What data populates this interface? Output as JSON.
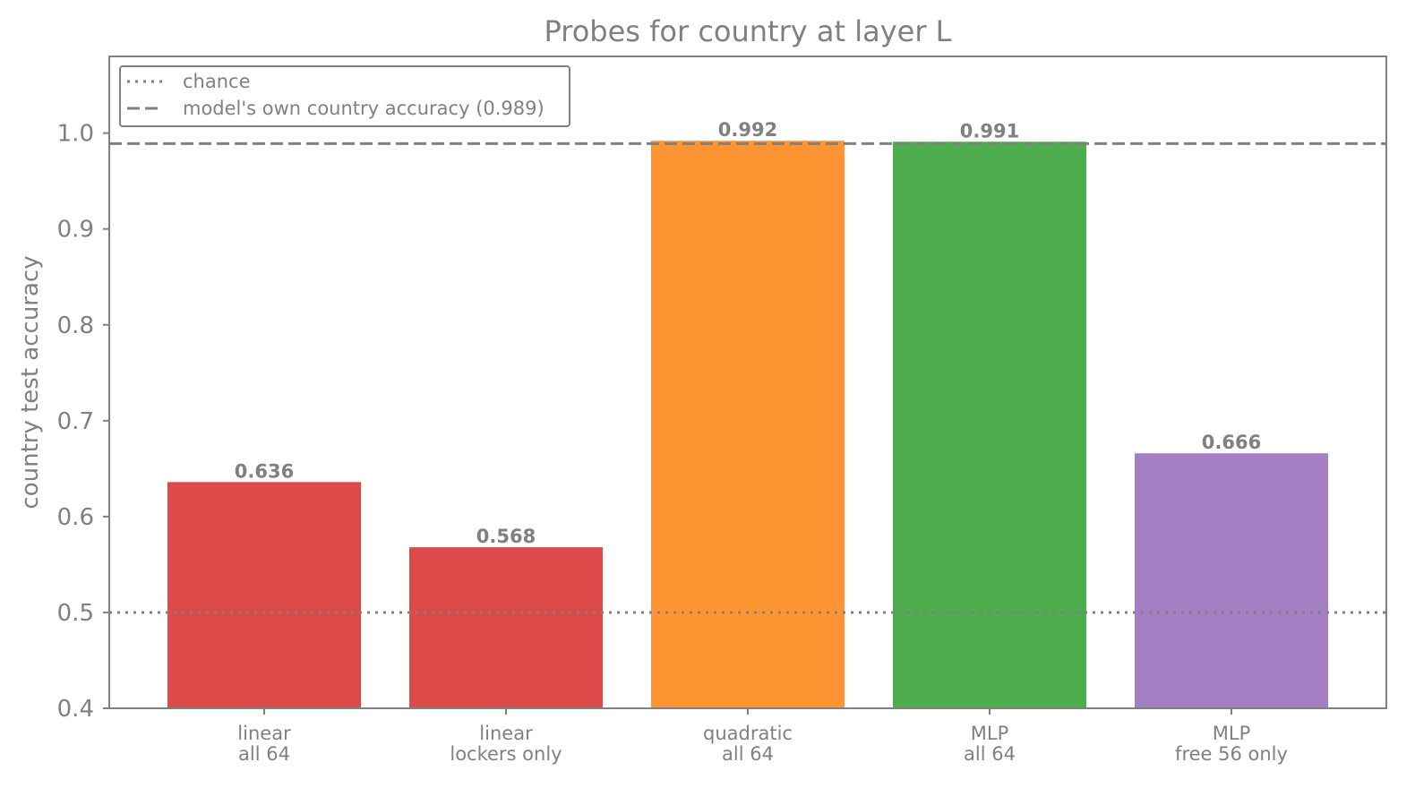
{
  "chart_data": {
    "type": "bar",
    "title": "Probes for country at layer L",
    "xlabel": "",
    "ylabel": "country test accuracy",
    "ylim": [
      0.4,
      1.08
    ],
    "yticks": [
      0.4,
      0.5,
      0.6,
      0.7,
      0.8,
      0.9,
      1.0
    ],
    "ytick_labels": [
      "0.4",
      "0.5",
      "0.6",
      "0.7",
      "0.8",
      "0.9",
      "1.0"
    ],
    "categories": [
      [
        "linear",
        "all 64"
      ],
      [
        "linear",
        "lockers only"
      ],
      [
        "quadratic",
        "all 64"
      ],
      [
        "MLP",
        "all 64"
      ],
      [
        "MLP",
        "free 56 only"
      ]
    ],
    "values": [
      0.636,
      0.568,
      0.992,
      0.991,
      0.666
    ],
    "value_labels": [
      "0.636",
      "0.568",
      "0.992",
      "0.991",
      "0.666"
    ],
    "bar_colors": [
      "#dc4a4a",
      "#dc4a4a",
      "#ff9433",
      "#4dad4d",
      "#a57fc4"
    ],
    "reference_lines": [
      {
        "label": "chance",
        "value": 0.5,
        "style": "dotted",
        "color": "#808080"
      },
      {
        "label": "model's own country accuracy (0.989)",
        "value": 0.989,
        "style": "dashed",
        "color": "#808080"
      }
    ],
    "legend_position": "top-left",
    "grid": false
  }
}
